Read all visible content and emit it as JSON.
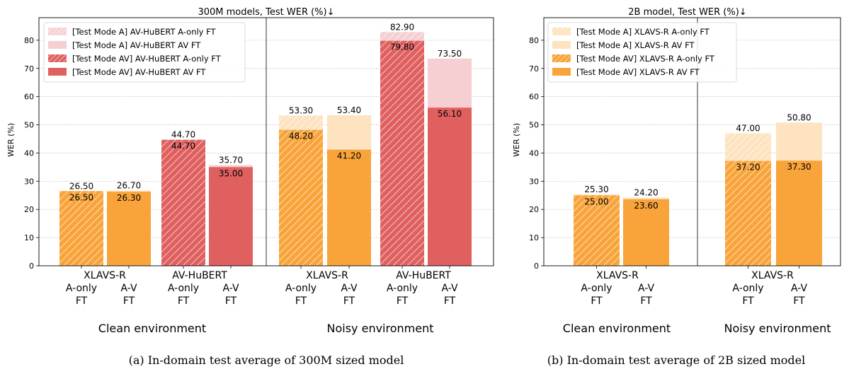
{
  "chart_data": [
    {
      "type": "bar",
      "title": "300M models, Test WER (%)↓",
      "ylabel": "WER (%)",
      "ylim": [
        0,
        88
      ],
      "yticks": [
        0,
        10,
        20,
        30,
        40,
        50,
        60,
        70,
        80
      ],
      "grid": "horizontal dotted",
      "legend_position": "top-left",
      "legend": [
        {
          "label": "[Test Mode A] AV-HuBERT A-only FT",
          "color": "#f7d2d4",
          "hatch": true
        },
        {
          "label": "[Test Mode A] AV-HuBERT AV FT",
          "color": "#f5cfd1",
          "hatch": false
        },
        {
          "label": "[Test Mode AV] AV-HuBERT A-only FT",
          "color": "#e06060",
          "hatch": true
        },
        {
          "label": "[Test Mode AV] AV-HuBERT AV FT",
          "color": "#e06060",
          "hatch": false
        }
      ],
      "environment_labels": [
        "Clean environment",
        "Noisy environment"
      ],
      "model_labels": [
        "XLAVS-R",
        "AV-HuBERT",
        "XLAVS-R",
        "AV-HuBERT"
      ],
      "bars": [
        {
          "env": "Clean",
          "model": "XLAVS-R",
          "ft": [
            "A-only",
            "FT"
          ],
          "test_a": 26.5,
          "test_av": 26.5,
          "test_a_label": "26.50",
          "test_av_label": "26.50",
          "color": "#f9a43a",
          "light_color": "#fde3c0",
          "hatch": true
        },
        {
          "env": "Clean",
          "model": "XLAVS-R",
          "ft": [
            "A-V",
            "FT"
          ],
          "test_a": 26.7,
          "test_av": 26.3,
          "test_a_label": "26.70",
          "test_av_label": "26.30",
          "color": "#f9a43a",
          "light_color": "#fde3c0",
          "hatch": false
        },
        {
          "env": "Clean",
          "model": "AV-HuBERT",
          "ft": [
            "A-only",
            "FT"
          ],
          "test_a": 44.7,
          "test_av": 44.7,
          "test_a_label": "44.70",
          "test_av_label": "44.70",
          "color": "#e06060",
          "light_color": "#f5cfd1",
          "hatch": true
        },
        {
          "env": "Clean",
          "model": "AV-HuBERT",
          "ft": [
            "A-V",
            "FT"
          ],
          "test_a": 35.7,
          "test_av": 35.0,
          "test_a_label": "35.70",
          "test_av_label": "35.00",
          "color": "#e06060",
          "light_color": "#f5cfd1",
          "hatch": false
        },
        {
          "env": "Noisy",
          "model": "XLAVS-R",
          "ft": [
            "A-only",
            "FT"
          ],
          "test_a": 53.3,
          "test_av": 48.2,
          "test_a_label": "53.30",
          "test_av_label": "48.20",
          "color": "#f9a43a",
          "light_color": "#fde3c0",
          "hatch": true
        },
        {
          "env": "Noisy",
          "model": "XLAVS-R",
          "ft": [
            "A-V",
            "FT"
          ],
          "test_a": 53.4,
          "test_av": 41.2,
          "test_a_label": "53.40",
          "test_av_label": "41.20",
          "color": "#f9a43a",
          "light_color": "#fde3c0",
          "hatch": false
        },
        {
          "env": "Noisy",
          "model": "AV-HuBERT",
          "ft": [
            "A-only",
            "FT"
          ],
          "test_a": 82.9,
          "test_av": 79.8,
          "test_a_label": "82.90",
          "test_av_label": "79.80",
          "color": "#e06060",
          "light_color": "#f5cfd1",
          "hatch": true
        },
        {
          "env": "Noisy",
          "model": "AV-HuBERT",
          "ft": [
            "A-V",
            "FT"
          ],
          "test_a": 73.5,
          "test_av": 56.1,
          "test_a_label": "73.50",
          "test_av_label": "56.10",
          "color": "#e06060",
          "light_color": "#f5cfd1",
          "hatch": false
        }
      ],
      "caption": "(a) In-domain test average of 300M sized model"
    },
    {
      "type": "bar",
      "title": "2B model, Test WER (%)↓",
      "ylabel": "WER (%)",
      "ylim": [
        0,
        88
      ],
      "yticks": [
        0,
        10,
        20,
        30,
        40,
        50,
        60,
        70,
        80
      ],
      "grid": "horizontal dotted",
      "legend_position": "top-left",
      "legend": [
        {
          "label": "[Test Mode A] XLAVS-R A-only FT",
          "color": "#fde3c0",
          "hatch": true
        },
        {
          "label": "[Test Mode A] XLAVS-R AV FT",
          "color": "#fde3c0",
          "hatch": false
        },
        {
          "label": "[Test Mode AV] XLAVS-R A-only FT",
          "color": "#f9a43a",
          "hatch": true
        },
        {
          "label": "[Test Mode AV] XLAVS-R AV FT",
          "color": "#f9a43a",
          "hatch": false
        }
      ],
      "environment_labels": [
        "Clean environment",
        "Noisy environment"
      ],
      "model_labels": [
        "XLAVS-R",
        "XLAVS-R"
      ],
      "bars": [
        {
          "env": "Clean",
          "model": "XLAVS-R",
          "ft": [
            "A-only",
            "FT"
          ],
          "test_a": 25.3,
          "test_av": 25.0,
          "test_a_label": "25.30",
          "test_av_label": "25.00",
          "color": "#f9a43a",
          "light_color": "#fde3c0",
          "hatch": true
        },
        {
          "env": "Clean",
          "model": "XLAVS-R",
          "ft": [
            "A-V",
            "FT"
          ],
          "test_a": 24.2,
          "test_av": 23.6,
          "test_a_label": "24.20",
          "test_av_label": "23.60",
          "color": "#f9a43a",
          "light_color": "#fde3c0",
          "hatch": false
        },
        {
          "env": "Noisy",
          "model": "XLAVS-R",
          "ft": [
            "A-only",
            "FT"
          ],
          "test_a": 47.0,
          "test_av": 37.2,
          "test_a_label": "47.00",
          "test_av_label": "37.20",
          "color": "#f9a43a",
          "light_color": "#fde3c0",
          "hatch": true
        },
        {
          "env": "Noisy",
          "model": "XLAVS-R",
          "ft": [
            "A-V",
            "FT"
          ],
          "test_a": 50.8,
          "test_av": 37.3,
          "test_a_label": "50.80",
          "test_av_label": "37.30",
          "color": "#f9a43a",
          "light_color": "#fde3c0",
          "hatch": false
        }
      ],
      "caption": "(b) In-domain test average of 2B sized model"
    }
  ]
}
